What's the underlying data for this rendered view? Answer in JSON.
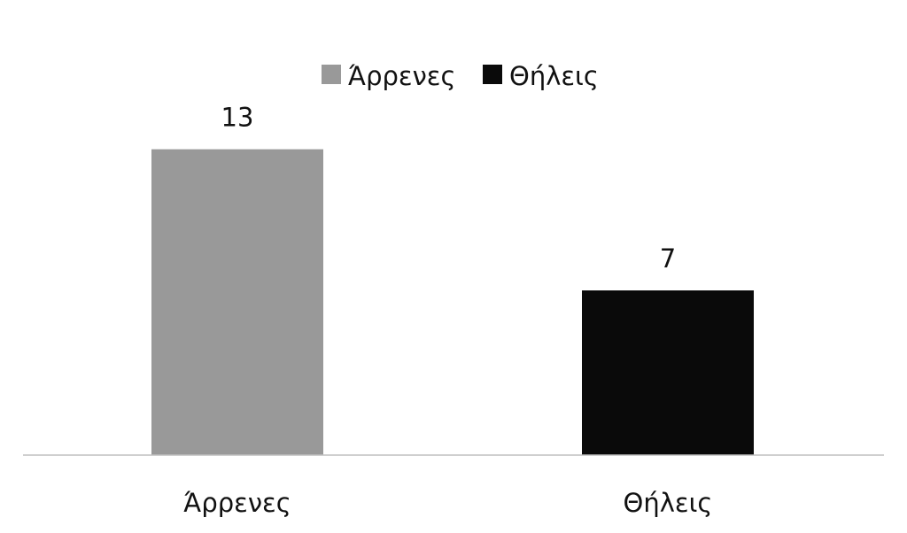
{
  "chart_data": {
    "type": "bar",
    "title": "",
    "xlabel": "",
    "ylabel": "",
    "categories": [
      "Άρρενες",
      "Θήλεις"
    ],
    "values": [
      13,
      7
    ],
    "colors": [
      "#999999",
      "#0a0a0a"
    ],
    "ylim": [
      0,
      14
    ],
    "grid": false,
    "legend": {
      "position": "top-center",
      "entries": [
        {
          "label": "Άρρενες",
          "color": "#999999"
        },
        {
          "label": "Θήλεις",
          "color": "#0a0a0a"
        }
      ]
    },
    "axis_color": "#bfbfbf"
  }
}
